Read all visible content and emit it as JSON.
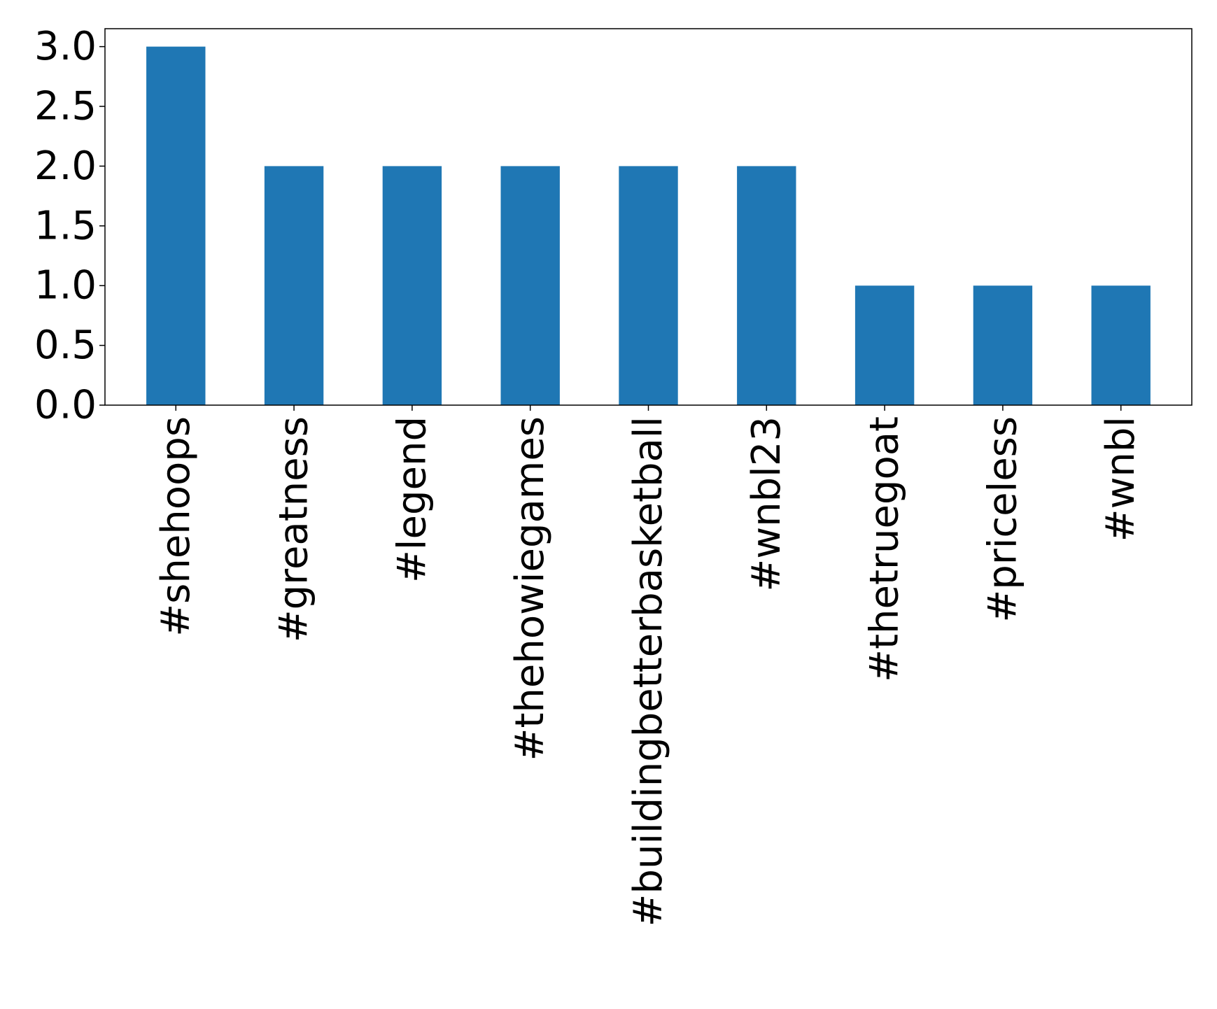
{
  "chart_data": {
    "type": "bar",
    "title": "",
    "xlabel": "",
    "ylabel": "",
    "categories": [
      "#shehoops",
      "#greatness",
      "#legend",
      "#thehowiegames",
      "#buildingbetterbasketball",
      "#wnbl23",
      "#thetruegoat",
      "#priceless",
      "#wnbl"
    ],
    "values": [
      3,
      2,
      2,
      2,
      2,
      2,
      1,
      1,
      1
    ],
    "ylim": [
      0,
      3.15
    ],
    "yticks": [
      0.0,
      0.5,
      1.0,
      1.5,
      2.0,
      2.5,
      3.0
    ],
    "ytick_labels": [
      "0.0",
      "0.5",
      "1.0",
      "1.5",
      "2.0",
      "2.5",
      "3.0"
    ],
    "bar_color": "#1f77b4",
    "grid": false,
    "legend": "none"
  }
}
